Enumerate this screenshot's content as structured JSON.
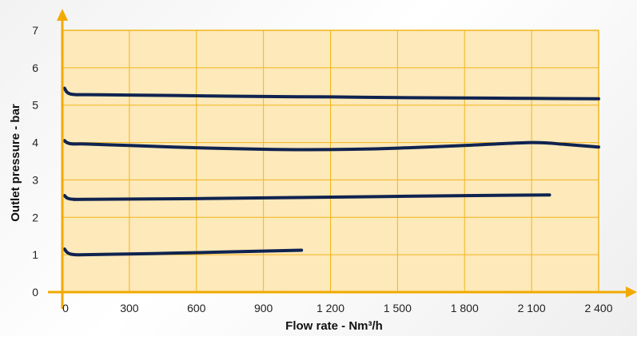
{
  "chart_data": {
    "type": "line",
    "title": "",
    "xlabel": "Flow rate - Nm³/h",
    "ylabel": "Outlet pressure - bar",
    "xlim": [
      0,
      2400
    ],
    "ylim": [
      0,
      7
    ],
    "x_ticks": [
      0,
      300,
      600,
      900,
      1200,
      1500,
      1800,
      2100,
      2400
    ],
    "x_tick_labels": [
      "0",
      "300",
      "600",
      "900",
      "1 200",
      "1 500",
      "1 800",
      "2 100",
      "2 400"
    ],
    "y_ticks": [
      0,
      1,
      2,
      3,
      4,
      5,
      6,
      7
    ],
    "y_tick_labels": [
      "0",
      "1",
      "2",
      "3",
      "4",
      "5",
      "6",
      "7"
    ],
    "grid": true,
    "legend": "none",
    "series": [
      {
        "x": [
          10,
          20,
          35,
          60,
          100,
          300,
          600,
          900,
          1200,
          1500,
          1800,
          2100,
          2400
        ],
        "values": [
          5.45,
          5.35,
          5.3,
          5.28,
          5.28,
          5.27,
          5.25,
          5.23,
          5.22,
          5.2,
          5.19,
          5.18,
          5.17
        ]
      },
      {
        "x": [
          10,
          20,
          35,
          60,
          100,
          300,
          600,
          900,
          1100,
          1300,
          1500,
          1800,
          2100,
          2250,
          2400
        ],
        "values": [
          4.05,
          4.0,
          3.97,
          3.96,
          3.96,
          3.92,
          3.86,
          3.82,
          3.81,
          3.82,
          3.85,
          3.92,
          4.0,
          3.95,
          3.88
        ]
      },
      {
        "x": [
          10,
          20,
          35,
          60,
          100,
          600,
          1200,
          1800,
          2180
        ],
        "values": [
          2.58,
          2.52,
          2.49,
          2.48,
          2.48,
          2.5,
          2.54,
          2.58,
          2.6
        ]
      },
      {
        "x": [
          10,
          20,
          35,
          60,
          100,
          400,
          700,
          1070
        ],
        "values": [
          1.15,
          1.07,
          1.02,
          1.0,
          1.0,
          1.03,
          1.07,
          1.12
        ]
      }
    ],
    "colors": {
      "plot_background": "#fde9b9",
      "grid": "#f2b51d",
      "axis": "#f2a900",
      "curve": "#0f2350"
    }
  }
}
